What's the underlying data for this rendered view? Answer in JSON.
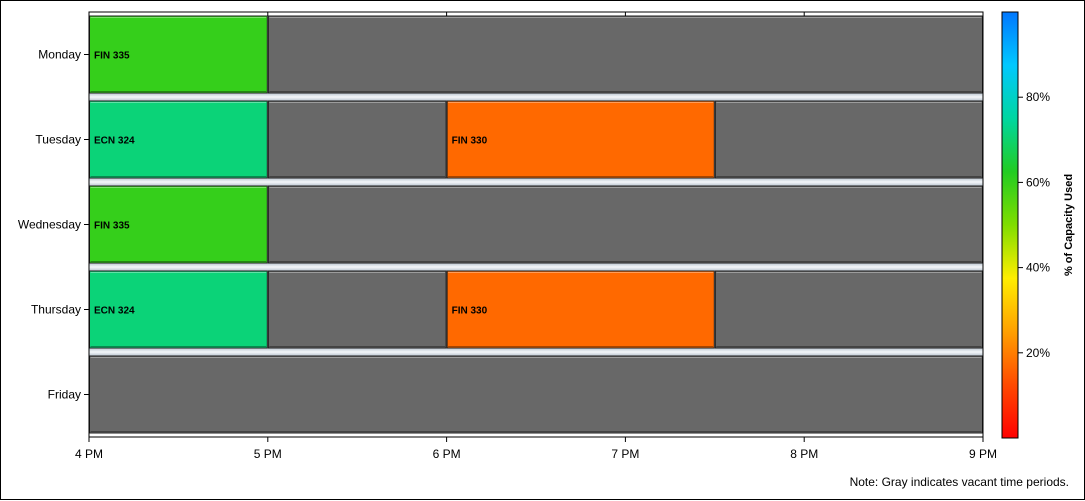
{
  "chart_data": {
    "type": "bar",
    "subtype": "gantt",
    "categories": [
      "Monday",
      "Tuesday",
      "Wednesday",
      "Thursday",
      "Friday"
    ],
    "x_ticks": [
      {
        "value": 16,
        "label": "4 PM"
      },
      {
        "value": 17,
        "label": "5 PM"
      },
      {
        "value": 18,
        "label": "6 PM"
      },
      {
        "value": 19,
        "label": "7 PM"
      },
      {
        "value": 20,
        "label": "8 PM"
      },
      {
        "value": 21,
        "label": "9 PM"
      }
    ],
    "xlim": [
      16,
      21
    ],
    "segments": [
      {
        "day": "Monday",
        "start": 16,
        "end": 17,
        "label": "FIN 335",
        "capacity": 60
      },
      {
        "day": "Monday",
        "start": 17,
        "end": 21,
        "label": "",
        "capacity": null
      },
      {
        "day": "Tuesday",
        "start": 16,
        "end": 17,
        "label": "ECN 324",
        "capacity": 71
      },
      {
        "day": "Tuesday",
        "start": 17,
        "end": 18,
        "label": "",
        "capacity": null
      },
      {
        "day": "Tuesday",
        "start": 18,
        "end": 19.5,
        "label": "FIN 330",
        "capacity": 17
      },
      {
        "day": "Tuesday",
        "start": 19.5,
        "end": 21,
        "label": "",
        "capacity": null
      },
      {
        "day": "Wednesday",
        "start": 16,
        "end": 17,
        "label": "FIN 335",
        "capacity": 60
      },
      {
        "day": "Wednesday",
        "start": 17,
        "end": 21,
        "label": "",
        "capacity": null
      },
      {
        "day": "Thursday",
        "start": 16,
        "end": 17,
        "label": "ECN 324",
        "capacity": 71
      },
      {
        "day": "Thursday",
        "start": 17,
        "end": 18,
        "label": "",
        "capacity": null
      },
      {
        "day": "Thursday",
        "start": 18,
        "end": 19.5,
        "label": "FIN 330",
        "capacity": 17
      },
      {
        "day": "Thursday",
        "start": 19.5,
        "end": 21,
        "label": "",
        "capacity": null
      },
      {
        "day": "Friday",
        "start": 16,
        "end": 21,
        "label": "",
        "capacity": null
      }
    ],
    "legend": {
      "title": "% of Capacity Used",
      "placement": "right",
      "range": [
        0,
        100
      ],
      "ticks": [
        {
          "value": 20,
          "label": "20%"
        },
        {
          "value": 40,
          "label": "40%"
        },
        {
          "value": 60,
          "label": "60%"
        },
        {
          "value": 80,
          "label": "80%"
        }
      ],
      "colors": [
        "#ff0000",
        "#ff4a00",
        "#ffa000",
        "#ffee00",
        "#80dd00",
        "#22cc22",
        "#00d6a0",
        "#00c8ff",
        "#0077ff"
      ]
    },
    "vacant_color": "#686868"
  },
  "footnote": "Note: Gray indicates vacant time periods."
}
